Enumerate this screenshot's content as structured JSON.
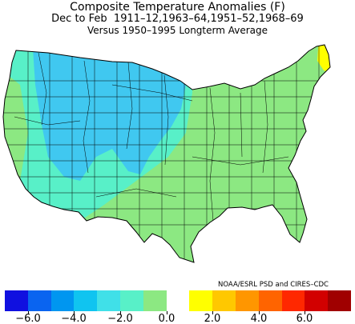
{
  "title": {
    "line1": "Composite Temperature Anomalies (F)",
    "line2": "Dec to Feb  1911–12,1963–64,1951–52,1968–69",
    "line3": "Versus 1950–1995 Longterm Average"
  },
  "credit": "NOAA/ESRL PSD and CIRES–CDC",
  "map": {
    "region": "Contiguous United States climate divisions",
    "regions": [
      {
        "name": "Northern Rockies and Northern Plains",
        "anomaly_range": "-4.0 to -2.0",
        "color": "#40c8f0"
      },
      {
        "name": "Great Basin",
        "anomaly_range": "-4.0 to -2.0",
        "color": "#40c8f0"
      },
      {
        "name": "Pacific Coast and Southwest",
        "anomaly_range": "-2.0 to -1.0",
        "color": "#58f0c8"
      },
      {
        "name": "Southern Plains and East",
        "anomaly_range": "-1.0 to 0.0",
        "color": "#8ce882"
      },
      {
        "name": "Northern Maine",
        "anomaly_range": "0.0 to 2.0",
        "color": "#ffff00"
      }
    ]
  },
  "legend": {
    "colors": [
      "#1010e0",
      "#0a64f0",
      "#0096f0",
      "#10c4f0",
      "#40e0e8",
      "#58f0c8",
      "#8ce882",
      "#ffffff",
      "#ffff00",
      "#ffc800",
      "#ff9600",
      "#ff6400",
      "#ff2800",
      "#d20000",
      "#a00000"
    ],
    "tick_labels": [
      "−6.0",
      "−4.0",
      "−2.0",
      "0.0",
      "2.0",
      "4.0",
      "6.0"
    ]
  }
}
